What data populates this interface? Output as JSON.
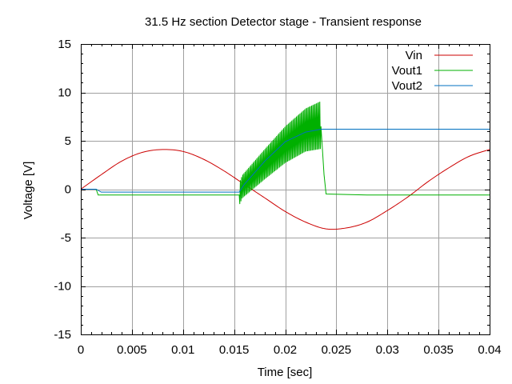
{
  "chart_data": {
    "type": "line",
    "title": "31.5 Hz section Detector stage - Transient response",
    "xlabel": "Time [sec]",
    "ylabel": "Voltage [V]",
    "xlim": [
      0,
      0.04
    ],
    "ylim": [
      -15,
      15
    ],
    "x_ticks": [
      0,
      0.005,
      0.01,
      0.015,
      0.02,
      0.025,
      0.03,
      0.035,
      0.04
    ],
    "x_tick_labels": [
      "0",
      "0.005",
      "0.01",
      "0.015",
      "0.02",
      "0.025",
      "0.03",
      "0.035",
      "0.04"
    ],
    "y_ticks": [
      -15,
      -10,
      -5,
      0,
      5,
      10,
      15
    ],
    "y_tick_labels": [
      "-15",
      "-10",
      "-5",
      "0",
      "5",
      "10",
      "15"
    ],
    "grid": true,
    "legend_position": "top-right",
    "series": [
      {
        "name": "Vin",
        "color": "#cc0000",
        "x": [
          0,
          0.002,
          0.004,
          0.006,
          0.008,
          0.01,
          0.012,
          0.014,
          0.016,
          0.018,
          0.02,
          0.022,
          0.024,
          0.026,
          0.028,
          0.03,
          0.032,
          0.034,
          0.036,
          0.038,
          0.04
        ],
        "y": [
          0,
          1.5,
          2.9,
          3.8,
          4.1,
          3.9,
          3.1,
          1.9,
          0.5,
          -0.9,
          -2.3,
          -3.4,
          -4.1,
          -4.0,
          -3.4,
          -2.2,
          -0.8,
          0.8,
          2.2,
          3.4,
          4.1
        ]
      },
      {
        "name": "Vout1",
        "color": "#00b000",
        "x": [
          0,
          0.0015,
          0.0017,
          0.0155,
          0.0158,
          0.018,
          0.02,
          0.022,
          0.0235,
          0.0238,
          0.024,
          0.028,
          0.04
        ],
        "y": [
          0,
          0,
          -0.6,
          -0.6,
          0.2,
          2.5,
          4.5,
          6.0,
          6.5,
          1.5,
          -0.5,
          -0.6,
          -0.6
        ]
      },
      {
        "name": "Vout2",
        "color": "#0070c0",
        "x": [
          0,
          0.0015,
          0.002,
          0.0155,
          0.016,
          0.018,
          0.02,
          0.022,
          0.0235,
          0.024,
          0.04
        ],
        "y": [
          0,
          0,
          -0.3,
          -0.3,
          0.5,
          2.9,
          4.9,
          5.9,
          6.2,
          6.2,
          6.2
        ]
      }
    ]
  }
}
